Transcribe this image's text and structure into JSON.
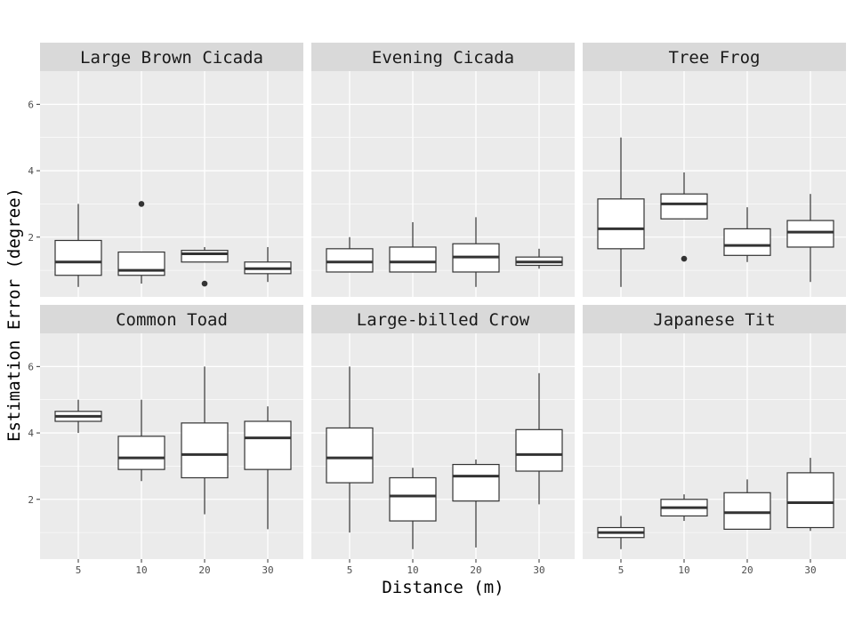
{
  "chart_data": {
    "type": "boxplot",
    "facet_layout": {
      "rows": 2,
      "cols": 3
    },
    "xlabel": "Distance (m)",
    "ylabel": "Estimation Error (degree)",
    "categories": [
      "5",
      "10",
      "20",
      "30"
    ],
    "y_ticks": [
      2,
      4,
      6
    ],
    "ylim": [
      0.2,
      7
    ],
    "colors": {
      "panel_bg": "#ebebeb",
      "strip_bg": "#d9d9d9",
      "grid": "#ffffff",
      "box_fill": "#ffffff",
      "box_line": "#333333"
    },
    "panels": [
      {
        "title": "Large Brown Cicada",
        "boxes": [
          {
            "category": "5",
            "min": 0.5,
            "q1": 0.85,
            "median": 1.25,
            "q3": 1.9,
            "max": 3.0,
            "outliers": []
          },
          {
            "category": "10",
            "min": 0.6,
            "q1": 0.85,
            "median": 1.0,
            "q3": 1.55,
            "max": 1.55,
            "outliers": [
              3.0
            ]
          },
          {
            "category": "20",
            "min": 1.25,
            "q1": 1.25,
            "median": 1.5,
            "q3": 1.6,
            "max": 1.7,
            "outliers": [
              0.6
            ]
          },
          {
            "category": "30",
            "min": 0.65,
            "q1": 0.9,
            "median": 1.05,
            "q3": 1.25,
            "max": 1.7,
            "outliers": []
          }
        ]
      },
      {
        "title": "Evening Cicada",
        "boxes": [
          {
            "category": "5",
            "min": 0.95,
            "q1": 0.95,
            "median": 1.25,
            "q3": 1.65,
            "max": 2.0,
            "outliers": []
          },
          {
            "category": "10",
            "min": 0.95,
            "q1": 0.95,
            "median": 1.25,
            "q3": 1.7,
            "max": 2.45,
            "outliers": []
          },
          {
            "category": "20",
            "min": 0.5,
            "q1": 0.95,
            "median": 1.4,
            "q3": 1.8,
            "max": 2.6,
            "outliers": []
          },
          {
            "category": "30",
            "min": 1.05,
            "q1": 1.15,
            "median": 1.25,
            "q3": 1.4,
            "max": 1.65,
            "outliers": []
          }
        ]
      },
      {
        "title": "Tree Frog",
        "boxes": [
          {
            "category": "5",
            "min": 0.5,
            "q1": 1.65,
            "median": 2.25,
            "q3": 3.15,
            "max": 5.0,
            "outliers": []
          },
          {
            "category": "10",
            "min": 2.55,
            "q1": 2.55,
            "median": 3.0,
            "q3": 3.3,
            "max": 3.95,
            "outliers": [
              1.35
            ]
          },
          {
            "category": "20",
            "min": 1.25,
            "q1": 1.45,
            "median": 1.75,
            "q3": 2.25,
            "max": 2.9,
            "outliers": []
          },
          {
            "category": "30",
            "min": 0.65,
            "q1": 1.7,
            "median": 2.15,
            "q3": 2.5,
            "max": 3.3,
            "outliers": []
          }
        ]
      },
      {
        "title": "Common Toad",
        "boxes": [
          {
            "category": "5",
            "min": 4.0,
            "q1": 4.35,
            "median": 4.5,
            "q3": 4.65,
            "max": 5.0,
            "outliers": []
          },
          {
            "category": "10",
            "min": 2.55,
            "q1": 2.9,
            "median": 3.25,
            "q3": 3.9,
            "max": 5.0,
            "outliers": []
          },
          {
            "category": "20",
            "min": 1.55,
            "q1": 2.65,
            "median": 3.35,
            "q3": 4.3,
            "max": 6.0,
            "outliers": []
          },
          {
            "category": "30",
            "min": 1.1,
            "q1": 2.9,
            "median": 3.85,
            "q3": 4.35,
            "max": 4.8,
            "outliers": []
          }
        ]
      },
      {
        "title": "Large-billed Crow",
        "boxes": [
          {
            "category": "5",
            "min": 1.0,
            "q1": 2.5,
            "median": 3.25,
            "q3": 4.15,
            "max": 6.0,
            "outliers": []
          },
          {
            "category": "10",
            "min": 0.5,
            "q1": 1.35,
            "median": 2.1,
            "q3": 2.65,
            "max": 2.95,
            "outliers": []
          },
          {
            "category": "20",
            "min": 0.55,
            "q1": 1.95,
            "median": 2.7,
            "q3": 3.05,
            "max": 3.2,
            "outliers": []
          },
          {
            "category": "30",
            "min": 1.85,
            "q1": 2.85,
            "median": 3.35,
            "q3": 4.1,
            "max": 5.8,
            "outliers": []
          }
        ]
      },
      {
        "title": "Japanese Tit",
        "boxes": [
          {
            "category": "5",
            "min": 0.5,
            "q1": 0.85,
            "median": 1.0,
            "q3": 1.15,
            "max": 1.5,
            "outliers": []
          },
          {
            "category": "10",
            "min": 1.35,
            "q1": 1.5,
            "median": 1.75,
            "q3": 2.0,
            "max": 2.15,
            "outliers": []
          },
          {
            "category": "20",
            "min": 1.1,
            "q1": 1.1,
            "median": 1.6,
            "q3": 2.2,
            "max": 2.6,
            "outliers": []
          },
          {
            "category": "30",
            "min": 1.05,
            "q1": 1.15,
            "median": 1.9,
            "q3": 2.8,
            "max": 3.25,
            "outliers": []
          }
        ]
      }
    ]
  }
}
